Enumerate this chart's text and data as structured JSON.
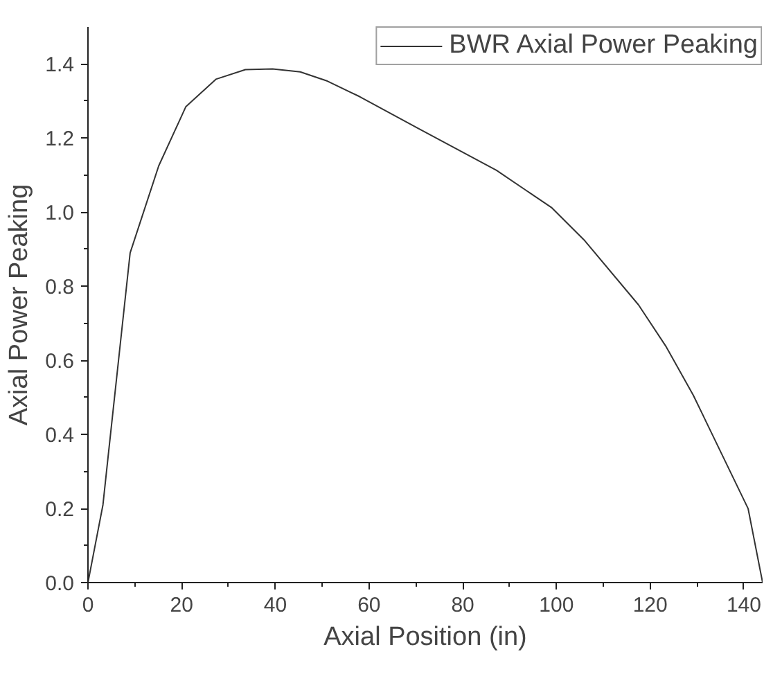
{
  "chart_data": {
    "type": "line",
    "xlabel": "Axial Position (in)",
    "ylabel": "Axial Power Peaking",
    "xlim": [
      0,
      144
    ],
    "ylim": [
      0,
      1.5
    ],
    "xticks": [
      0,
      20,
      40,
      60,
      80,
      100,
      120,
      140
    ],
    "yticks": [
      {
        "value": 0,
        "label": "0.0"
      },
      0.2,
      0.4,
      0.6,
      0.8,
      {
        "value": 1.0,
        "label": "1.0"
      },
      1.2,
      1.4
    ],
    "grid": false,
    "legend": "top right",
    "marker": "none",
    "line_style": "solid",
    "series": [
      {
        "name": "BWR Axial Power Peaking",
        "color": "#333333",
        "x": [
          0,
          3.2,
          4.3,
          9.0,
          15.1,
          20.9,
          27.3,
          33.6,
          39.4,
          45.3,
          51.1,
          58.0,
          70.7,
          87.2,
          99.0,
          105.9,
          117.5,
          123.4,
          129.2,
          140.9,
          144
        ],
        "values": [
          0,
          0.21,
          0.34,
          0.89,
          1.125,
          1.285,
          1.359,
          1.385,
          1.387,
          1.379,
          1.354,
          1.312,
          1.225,
          1.113,
          1.012,
          0.925,
          0.75,
          0.637,
          0.506,
          0.2,
          0
        ]
      }
    ]
  }
}
